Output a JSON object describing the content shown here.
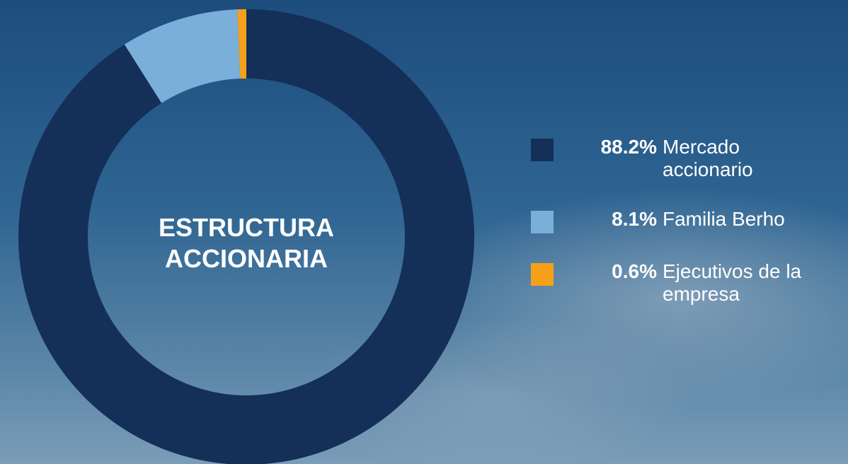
{
  "chart_data": {
    "type": "pie",
    "title": "ESTRUCTURA ACCIONARIA",
    "categories": [
      "Mercado accionario",
      "Familia Berho",
      "Ejecutivos de la empresa"
    ],
    "values": [
      88.2,
      8.1,
      0.6
    ],
    "value_labels": [
      "88.2%",
      "8.1%",
      "0.6%"
    ],
    "colors": [
      "#142f58",
      "#7aafd9",
      "#f6a01a"
    ],
    "donut": true
  }
}
